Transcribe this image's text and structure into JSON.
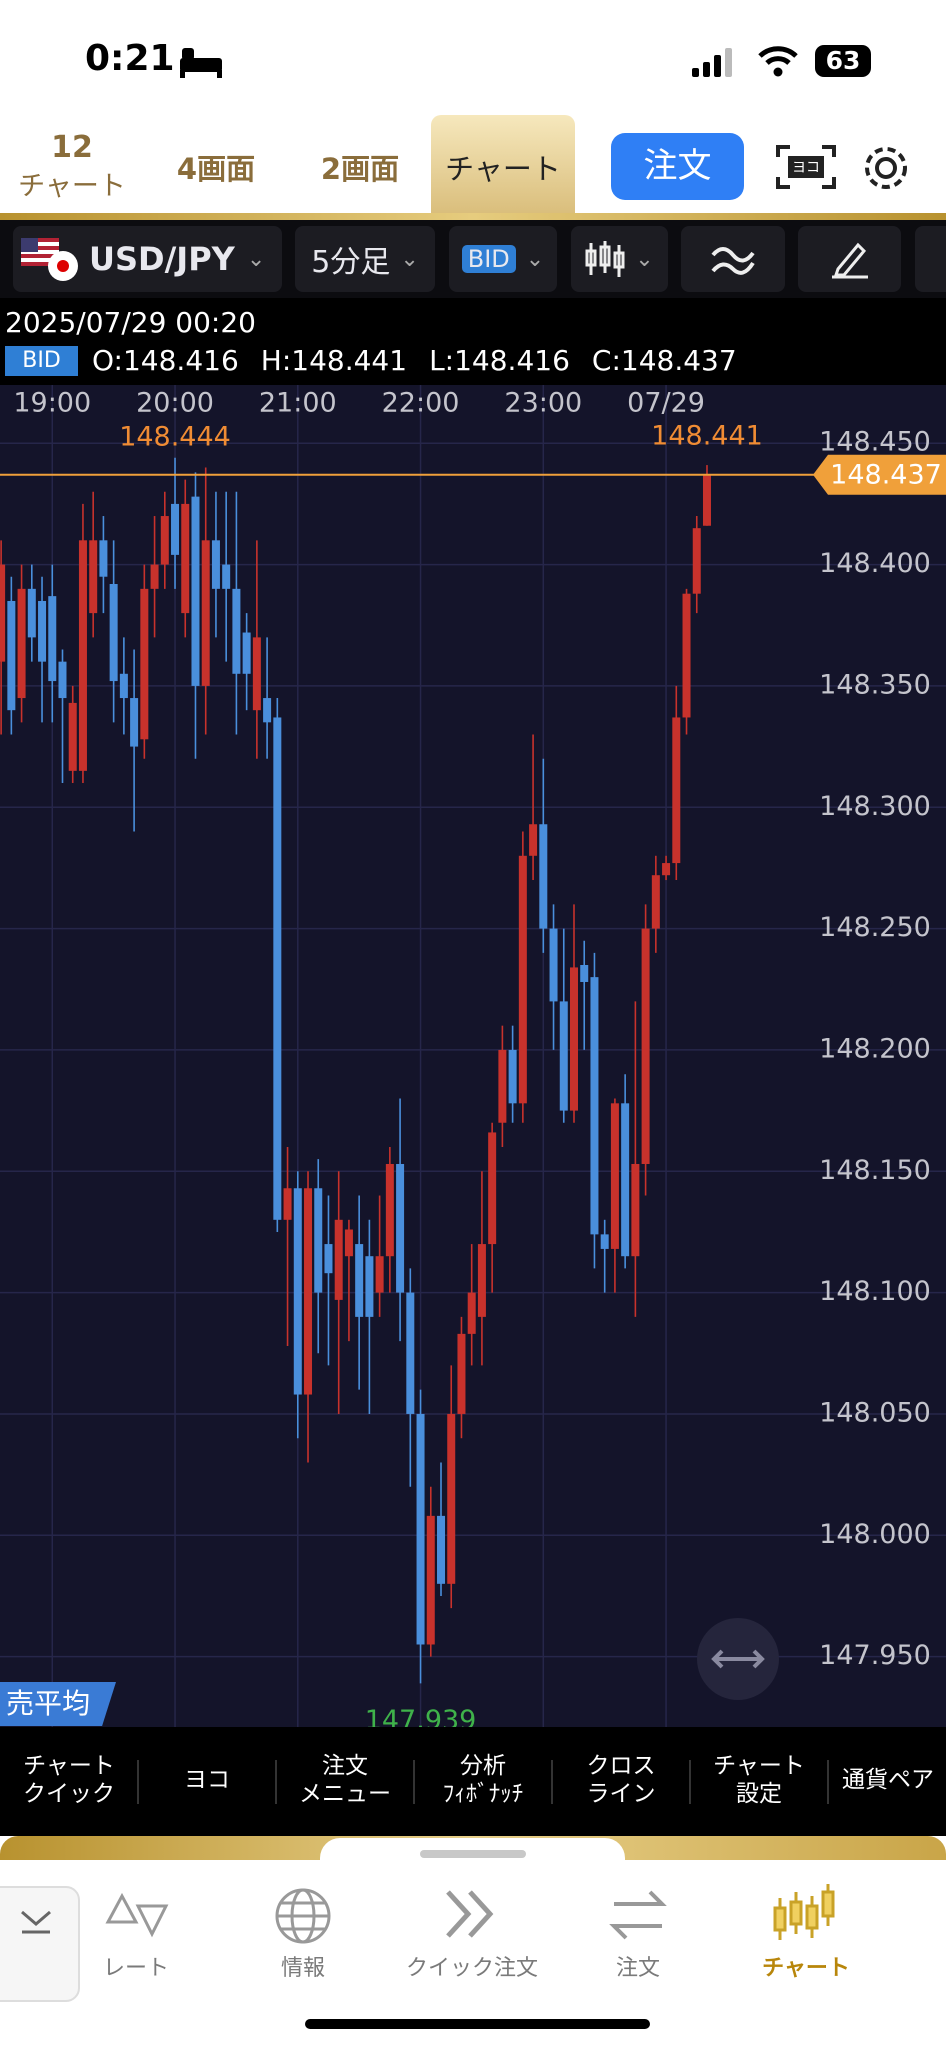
{
  "status_bar": {
    "time": "0:21",
    "battery": "63"
  },
  "top_tabs": {
    "chart_count": "12",
    "chart_count_label": "チャート",
    "tabs": [
      "4画面",
      "2画面",
      "チャート"
    ],
    "order_button": "注文"
  },
  "toolbar": {
    "pair": "USD/JPY",
    "timeframe": "5分足",
    "price_type": "BID"
  },
  "info": {
    "datetime": "2025/07/29 00:20",
    "badge": "BID",
    "open": "O:148.416",
    "high": "H:148.441",
    "low": "L:148.416",
    "close": "C:148.437"
  },
  "chart_data": {
    "type": "candlestick",
    "categories": [
      null,
      null,
      null,
      null,
      null,
      "19:00",
      null,
      null,
      null,
      null,
      null,
      null,
      null,
      null,
      null,
      null,
      null,
      "20:00",
      null,
      null,
      null,
      null,
      null,
      null,
      null,
      null,
      null,
      null,
      null,
      "21:00",
      null,
      null,
      null,
      null,
      null,
      null,
      null,
      null,
      null,
      null,
      null,
      "22:00",
      null,
      null,
      null,
      null,
      null,
      null,
      null,
      null,
      null,
      null,
      null,
      "23:00",
      null,
      null,
      null,
      null,
      null,
      null,
      null,
      null,
      null,
      null,
      null,
      "07/29",
      null,
      null,
      null,
      null
    ],
    "open": [
      148.36,
      148.385,
      148.345,
      148.39,
      148.385,
      148.387,
      148.36,
      148.315,
      148.315,
      148.38,
      148.41,
      148.392,
      148.355,
      148.345,
      148.328,
      148.39,
      148.4,
      148.425,
      148.38,
      148.428,
      148.35,
      148.41,
      148.4,
      148.39,
      148.372,
      148.34,
      148.345,
      148.337,
      148.13,
      148.143,
      148.058,
      148.143,
      148.12,
      148.097,
      148.115,
      148.12,
      148.115,
      148.1,
      148.115,
      148.153,
      148.1,
      148.05,
      147.955,
      148.008,
      147.98,
      148.05,
      148.083,
      148.09,
      148.12,
      148.17,
      148.2,
      148.178,
      148.28,
      148.293,
      148.25,
      148.22,
      148.175,
      148.235,
      148.23,
      148.124,
      148.118,
      148.178,
      148.115,
      148.153,
      148.25,
      148.272,
      148.277,
      148.337,
      148.388,
      148.416
    ],
    "high": [
      148.41,
      148.395,
      148.4,
      148.4,
      148.395,
      148.4,
      148.365,
      148.35,
      148.425,
      148.43,
      148.42,
      148.41,
      148.37,
      148.365,
      148.4,
      148.42,
      148.43,
      148.444,
      148.435,
      148.438,
      148.44,
      148.43,
      148.43,
      148.43,
      148.38,
      148.41,
      148.37,
      148.345,
      148.16,
      148.15,
      148.15,
      148.155,
      148.14,
      148.15,
      148.13,
      148.14,
      148.13,
      148.14,
      148.16,
      148.18,
      148.11,
      148.06,
      148.02,
      148.03,
      148.07,
      148.09,
      148.12,
      148.15,
      148.17,
      148.21,
      148.21,
      148.29,
      148.33,
      148.32,
      148.26,
      148.25,
      148.26,
      148.245,
      148.24,
      148.13,
      148.18,
      148.19,
      148.22,
      148.26,
      148.28,
      148.28,
      148.35,
      148.39,
      148.42,
      148.441
    ],
    "low": [
      148.33,
      148.33,
      148.335,
      148.36,
      148.335,
      148.335,
      148.31,
      148.31,
      148.31,
      148.37,
      148.38,
      148.335,
      148.33,
      148.29,
      148.32,
      148.37,
      148.39,
      148.39,
      148.37,
      148.32,
      148.33,
      148.37,
      148.36,
      148.33,
      148.34,
      148.32,
      148.32,
      148.125,
      148.078,
      148.04,
      148.03,
      148.075,
      148.07,
      148.05,
      148.08,
      148.06,
      148.05,
      148.09,
      148.1,
      148.08,
      148.02,
      147.939,
      147.95,
      147.975,
      147.97,
      148.04,
      148.07,
      148.07,
      148.1,
      148.16,
      148.17,
      148.17,
      148.27,
      148.24,
      148.2,
      148.17,
      148.17,
      148.2,
      148.11,
      148.1,
      148.1,
      148.11,
      148.09,
      148.14,
      148.24,
      148.27,
      148.27,
      148.33,
      148.38,
      148.416
    ],
    "close": [
      148.4,
      148.34,
      148.39,
      148.37,
      148.36,
      148.352,
      148.345,
      148.343,
      148.41,
      148.41,
      148.395,
      148.352,
      148.345,
      148.325,
      148.39,
      148.4,
      148.42,
      148.404,
      148.425,
      148.35,
      148.41,
      148.39,
      148.39,
      148.355,
      148.355,
      148.37,
      148.335,
      148.13,
      148.143,
      148.058,
      148.143,
      148.1,
      148.108,
      148.13,
      148.126,
      148.09,
      148.09,
      148.115,
      148.153,
      148.1,
      148.05,
      147.955,
      148.008,
      147.98,
      148.05,
      148.083,
      148.1,
      148.12,
      148.166,
      148.2,
      148.178,
      148.28,
      148.293,
      148.25,
      148.22,
      148.175,
      148.234,
      148.228,
      148.124,
      148.118,
      148.178,
      148.115,
      148.153,
      148.25,
      148.272,
      148.277,
      148.337,
      148.388,
      148.415,
      148.437
    ],
    "up_color": "#c8322c",
    "down_color": "#4a8fdc",
    "high_label_color": "#f08c34",
    "low_label_color": "#3fb24a",
    "last_price_color": "#f0a03a",
    "ylim": [
      147.921,
      148.474
    ],
    "yticks": [
      {
        "value": 147.95,
        "label": "147.950"
      },
      {
        "value": 148,
        "label": "148.000"
      },
      {
        "value": 148.05,
        "label": "148.050"
      },
      {
        "value": 148.1,
        "label": "148.100"
      },
      {
        "value": 148.15,
        "label": "148.150"
      },
      {
        "value": 148.2,
        "label": "148.200"
      },
      {
        "value": 148.25,
        "label": "148.250"
      },
      {
        "value": 148.3,
        "label": "148.300"
      },
      {
        "value": 148.35,
        "label": "148.350"
      },
      {
        "value": 148.4,
        "label": "148.400"
      },
      {
        "value": 148.45,
        "label": "148.450"
      }
    ],
    "grid": true
  },
  "overlay_badge": "売平均",
  "bottom_menu": [
    [
      "チャート",
      "クイック"
    ],
    [
      "ヨコ"
    ],
    [
      "注文",
      "メニュー"
    ],
    [
      "分析",
      "ﾌｨﾎﾞﾅｯﾁ"
    ],
    [
      "クロス",
      "ライン"
    ],
    [
      "チャート",
      "設定"
    ],
    [
      "通貨ペア"
    ]
  ],
  "tab_bar": [
    "レート",
    "情報",
    "クイック注文",
    "注文",
    "チャート"
  ]
}
